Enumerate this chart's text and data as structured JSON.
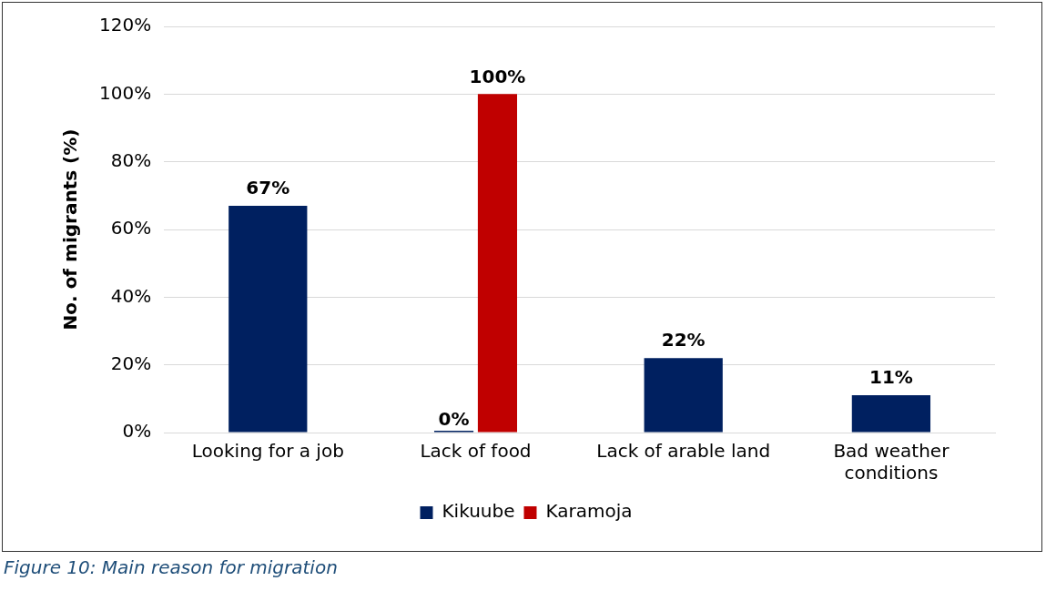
{
  "chart_data": {
    "type": "bar",
    "ylabel": "No. of migrants (%)",
    "categories": [
      "Looking for a job",
      "Lack of food",
      "Lack of arable land",
      [
        "Bad weather",
        "conditions"
      ]
    ],
    "series": [
      {
        "name": "Kikuube",
        "color": "#002060",
        "values": [
          67,
          0,
          22,
          11
        ],
        "value_labels": [
          "67%",
          "0%",
          "22%",
          "11%"
        ]
      },
      {
        "name": "Karamoja",
        "color": "#c00000",
        "values": [
          null,
          100,
          null,
          null
        ],
        "value_labels": [
          null,
          "100%",
          null,
          null
        ]
      }
    ],
    "ylim": [
      0,
      120
    ],
    "yticks": [
      {
        "value": 0,
        "label": "0%"
      },
      {
        "value": 20,
        "label": "20%"
      },
      {
        "value": 40,
        "label": "40%"
      },
      {
        "value": 60,
        "label": "60%"
      },
      {
        "value": 80,
        "label": "80%"
      },
      {
        "value": 100,
        "label": "100%"
      },
      {
        "value": 120,
        "label": "120%"
      }
    ],
    "grid": "y",
    "legend": "bottom",
    "annotations": [
      "Figure 10: Main reason for migration"
    ]
  }
}
